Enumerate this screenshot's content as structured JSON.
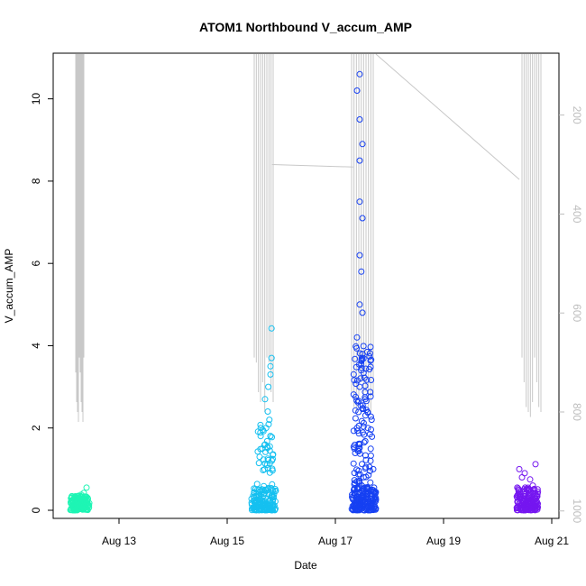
{
  "chart_data": {
    "type": "scatter",
    "title": "ATOM1 Northbound V_accum_AMP",
    "xlabel": "Date",
    "ylabel": "V_accum_AMP",
    "x_ticks": [
      {
        "value": 13,
        "label": "Aug 13"
      },
      {
        "value": 15,
        "label": "Aug 15"
      },
      {
        "value": 17,
        "label": "Aug 17"
      },
      {
        "value": 19,
        "label": "Aug 19"
      },
      {
        "value": 21,
        "label": "Aug 21"
      }
    ],
    "xlim": [
      11.9,
      21.1
    ],
    "y_ticks": [
      0,
      2,
      4,
      6,
      8,
      10
    ],
    "ylim": [
      -0.15,
      11.1
    ],
    "y2_ticks": [
      200,
      400,
      600,
      800,
      1000
    ],
    "y2lim": [
      1015,
      75
    ],
    "grid": false,
    "series": [
      {
        "color": "#1ef5b4",
        "x_range": [
          12.1,
          12.45
        ],
        "points": [
          [
            12.15,
            0.25
          ],
          [
            12.2,
            0.3
          ],
          [
            12.25,
            0.35
          ],
          [
            12.3,
            0.38
          ],
          [
            12.35,
            0.42
          ],
          [
            12.4,
            0.55
          ],
          [
            12.42,
            0.3
          ],
          [
            12.38,
            0.1
          ]
        ]
      },
      {
        "color": "#15c0f0",
        "x_range": [
          15.45,
          15.9
        ],
        "points": [
          [
            15.6,
            1.3
          ],
          [
            15.65,
            1.5
          ],
          [
            15.7,
            1.6
          ],
          [
            15.72,
            2.0
          ],
          [
            15.75,
            2.4
          ],
          [
            15.7,
            2.7
          ],
          [
            15.76,
            3.0
          ],
          [
            15.8,
            3.3
          ],
          [
            15.8,
            3.5
          ],
          [
            15.82,
            3.7
          ],
          [
            15.82,
            4.42
          ],
          [
            15.78,
            2.2
          ],
          [
            15.8,
            1.8
          ],
          [
            15.62,
            2.0
          ]
        ]
      },
      {
        "color": "#1640f2",
        "x_range": [
          17.3,
          17.75
        ],
        "points": [
          [
            17.35,
            1.5
          ],
          [
            17.4,
            2.0
          ],
          [
            17.45,
            3.0
          ],
          [
            17.4,
            4.2
          ],
          [
            17.45,
            5.0
          ],
          [
            17.45,
            6.2
          ],
          [
            17.45,
            7.5
          ],
          [
            17.45,
            8.5
          ],
          [
            17.45,
            9.5
          ],
          [
            17.45,
            10.6
          ],
          [
            17.4,
            10.2
          ],
          [
            17.5,
            8.9
          ],
          [
            17.5,
            7.1
          ],
          [
            17.48,
            5.8
          ],
          [
            17.5,
            4.8
          ],
          [
            17.5,
            3.8
          ],
          [
            17.55,
            2.7
          ],
          [
            17.6,
            2.0
          ],
          [
            17.65,
            1.2
          ],
          [
            17.7,
            1.0
          ]
        ]
      },
      {
        "color": "#7516f0",
        "x_range": [
          20.35,
          20.75
        ],
        "points": [
          [
            20.4,
            1.0
          ],
          [
            20.5,
            0.9
          ],
          [
            20.6,
            0.75
          ],
          [
            20.7,
            1.12
          ],
          [
            20.65,
            0.6
          ],
          [
            20.45,
            0.8
          ]
        ]
      }
    ],
    "overlay": {
      "color": "#c8c8c8",
      "note_axis": "right",
      "clusters": [
        {
          "xs": [
            12.2,
            12.35
          ],
          "tops": [
            75,
            75
          ],
          "bottoms": [
            720,
            780,
            800,
            820,
            690
          ]
        },
        {
          "xs": [
            15.5,
            15.85
          ],
          "tops": [
            75,
            75,
            75
          ],
          "bottoms": [
            690,
            700,
            760,
            780,
            740,
            800
          ]
        },
        {
          "xs": [
            17.3,
            17.7
          ],
          "tops": [
            75,
            75,
            75
          ],
          "bottoms": [
            760,
            790,
            800,
            770,
            740,
            780
          ]
        },
        {
          "xs": [
            20.45,
            20.8
          ],
          "tops": [
            75,
            75,
            75
          ],
          "bottoms": [
            690,
            740,
            790,
            800,
            810,
            780
          ]
        }
      ],
      "connectors": [
        [
          [
            15.83,
            300
          ],
          [
            17.33,
            305
          ]
        ],
        [
          [
            17.75,
            75
          ],
          [
            20.4,
            330
          ]
        ]
      ]
    }
  }
}
